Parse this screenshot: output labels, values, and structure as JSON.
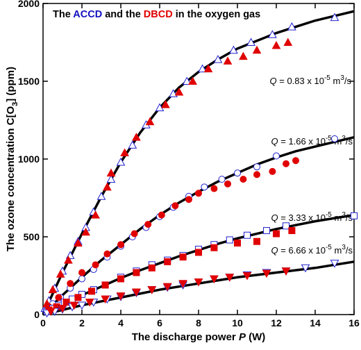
{
  "chart_data": {
    "type": "scatter",
    "title_parts": [
      {
        "text": "The ",
        "color": "#000000"
      },
      {
        "text": "ACCD",
        "color": "#1010c0"
      },
      {
        "text": " and the ",
        "color": "#000000"
      },
      {
        "text": "DBCD",
        "color": "#e00000"
      },
      {
        "text": " in the oxygen gas",
        "color": "#000000"
      }
    ],
    "x_label_parts": [
      "The discharge power ",
      "P",
      " (W)"
    ],
    "y_label_parts": [
      "The ozone concentration C[O",
      "3",
      "] (ppm)"
    ],
    "xlim": [
      0,
      16
    ],
    "ylim": [
      0,
      2000
    ],
    "xticks": [
      0,
      2,
      4,
      6,
      8,
      10,
      12,
      14,
      16
    ],
    "yticks": [
      0,
      500,
      1000,
      1500,
      2000
    ],
    "annotations": [
      {
        "parts": [
          "Q",
          " = 0.83 x 10",
          "-5",
          " m",
          "3",
          "/s"
        ]
      },
      {
        "parts": [
          "Q",
          " = 1.66 x 10",
          "-5",
          " m",
          "3",
          "/s"
        ]
      },
      {
        "parts": [
          "Q",
          " = 3.33 x 10",
          "-5",
          " m",
          "3",
          "/s"
        ]
      },
      {
        "parts": [
          "Q",
          " = 6.66 x 10",
          "-5",
          " m",
          "3",
          "/s"
        ]
      }
    ],
    "series": [
      {
        "kind": "line",
        "color": "#000000",
        "x": [
          0,
          1,
          2,
          3,
          4,
          5,
          6,
          7,
          8,
          9,
          10,
          11,
          12,
          13,
          14,
          15,
          16
        ],
        "values": [
          0,
          270,
          520,
          760,
          980,
          1170,
          1330,
          1460,
          1560,
          1640,
          1710,
          1760,
          1810,
          1850,
          1890,
          1920,
          1950
        ]
      },
      {
        "kind": "line",
        "color": "#000000",
        "x": [
          0,
          1,
          2,
          3,
          4,
          5,
          6,
          7,
          8,
          9,
          10,
          11,
          12,
          13,
          14,
          15,
          16
        ],
        "values": [
          0,
          125,
          240,
          350,
          450,
          550,
          640,
          720,
          790,
          855,
          910,
          965,
          1010,
          1050,
          1080,
          1110,
          1140
        ]
      },
      {
        "kind": "line",
        "color": "#000000",
        "x": [
          0,
          1,
          2,
          3,
          4,
          5,
          6,
          7,
          8,
          9,
          10,
          11,
          12,
          13,
          14,
          15,
          16
        ],
        "values": [
          0,
          65,
          125,
          180,
          235,
          285,
          330,
          375,
          415,
          455,
          490,
          520,
          550,
          575,
          600,
          620,
          640
        ]
      },
      {
        "kind": "line",
        "color": "#000000",
        "x": [
          0,
          1,
          2,
          3,
          4,
          5,
          6,
          7,
          8,
          9,
          10,
          11,
          12,
          13,
          14,
          15,
          16
        ],
        "values": [
          0,
          30,
          60,
          85,
          110,
          135,
          160,
          180,
          200,
          220,
          240,
          255,
          270,
          285,
          300,
          320,
          340
        ]
      },
      {
        "kind": "scatter",
        "marker": "triangle-up",
        "filled": false,
        "color": "#2020d0",
        "x": [
          0.1,
          0.3,
          0.6,
          1,
          1.4,
          1.8,
          2.2,
          2.6,
          3,
          3.5,
          4,
          4.6,
          5.3,
          6,
          6.7,
          7.4,
          8.2,
          9,
          9.8,
          10.7,
          11.8,
          12.8,
          15
        ],
        "values": [
          40,
          90,
          170,
          280,
          380,
          470,
          560,
          660,
          760,
          870,
          980,
          1090,
          1220,
          1330,
          1420,
          1500,
          1580,
          1640,
          1700,
          1750,
          1800,
          1850,
          1910
        ]
      },
      {
        "kind": "scatter",
        "marker": "triangle-up",
        "filled": true,
        "color": "#e00000",
        "x": [
          0.2,
          0.5,
          0.9,
          1.3,
          1.8,
          2.2,
          2.7,
          3.3,
          3.5,
          4.2,
          4.8,
          5.5,
          6.3,
          7,
          7.7,
          8.5,
          9.5,
          10.3,
          11,
          12,
          12.6
        ],
        "values": [
          70,
          160,
          260,
          350,
          460,
          530,
          640,
          820,
          910,
          1040,
          1140,
          1240,
          1350,
          1430,
          1500,
          1580,
          1630,
          1660,
          1700,
          1730,
          1750
        ]
      },
      {
        "kind": "scatter",
        "marker": "circle",
        "filled": false,
        "color": "#2020d0",
        "x": [
          0.2,
          0.5,
          0.9,
          1.4,
          2,
          2.6,
          3.3,
          4,
          4.6,
          5.3,
          6,
          6.7,
          7.5,
          8.3,
          9.2,
          10,
          11,
          12,
          15
        ],
        "values": [
          30,
          70,
          110,
          170,
          230,
          290,
          370,
          440,
          500,
          560,
          630,
          690,
          760,
          820,
          870,
          910,
          950,
          1020,
          1130
        ]
      },
      {
        "kind": "scatter",
        "marker": "circle",
        "filled": true,
        "color": "#e00000",
        "x": [
          0.3,
          0.8,
          1.4,
          2,
          2.7,
          3.3,
          4,
          4.7,
          5.4,
          6.1,
          6.8,
          7.5,
          8,
          8.8,
          9.5,
          10.3,
          11,
          11.8,
          12.5,
          13
        ],
        "values": [
          50,
          110,
          200,
          270,
          320,
          390,
          450,
          520,
          580,
          640,
          700,
          740,
          780,
          810,
          840,
          870,
          900,
          920,
          970,
          990
        ]
      },
      {
        "kind": "scatter",
        "marker": "square",
        "filled": false,
        "color": "#2020d0",
        "x": [
          0.2,
          0.5,
          0.8,
          1.1,
          1.5,
          2,
          2.6,
          3.2,
          4,
          4.8,
          5.6,
          6.4,
          7.2,
          8,
          8.8,
          9.6,
          10.5,
          11.5,
          12.5,
          16
        ],
        "values": [
          20,
          40,
          60,
          80,
          100,
          130,
          160,
          190,
          240,
          280,
          320,
          350,
          380,
          420,
          450,
          480,
          510,
          540,
          570,
          635
        ]
      },
      {
        "kind": "scatter",
        "marker": "square",
        "filled": true,
        "color": "#e00000",
        "x": [
          0.3,
          0.7,
          1.2,
          1.8,
          2.5,
          3.2,
          4,
          4.8,
          5.6,
          6.4,
          7.2,
          8,
          8.8,
          10,
          11,
          12,
          12.8
        ],
        "values": [
          30,
          50,
          80,
          110,
          150,
          190,
          230,
          270,
          300,
          340,
          370,
          400,
          430,
          460,
          470,
          520,
          540
        ]
      },
      {
        "kind": "scatter",
        "marker": "triangle-down",
        "filled": false,
        "color": "#2020d0",
        "x": [
          0.2,
          0.6,
          1,
          1.5,
          2,
          2.6,
          3.3,
          4,
          4.8,
          5.6,
          6.4,
          7.2,
          8,
          8.8,
          9.6,
          10.5,
          11.5,
          12.5,
          13.5,
          15
        ],
        "values": [
          10,
          20,
          35,
          50,
          60,
          80,
          100,
          115,
          140,
          160,
          175,
          190,
          210,
          230,
          240,
          255,
          270,
          280,
          300,
          330
        ]
      },
      {
        "kind": "scatter",
        "marker": "triangle-down",
        "filled": true,
        "color": "#e00000",
        "x": [
          0.4,
          1,
          1.6,
          2.4,
          3.2,
          4,
          4.8,
          5.6,
          6.4,
          7.2,
          8,
          8.8,
          9.6,
          10.5,
          11.5,
          12.5
        ],
        "values": [
          20,
          40,
          60,
          80,
          100,
          120,
          145,
          160,
          180,
          200,
          210,
          230,
          240,
          250,
          265,
          280
        ]
      }
    ]
  }
}
